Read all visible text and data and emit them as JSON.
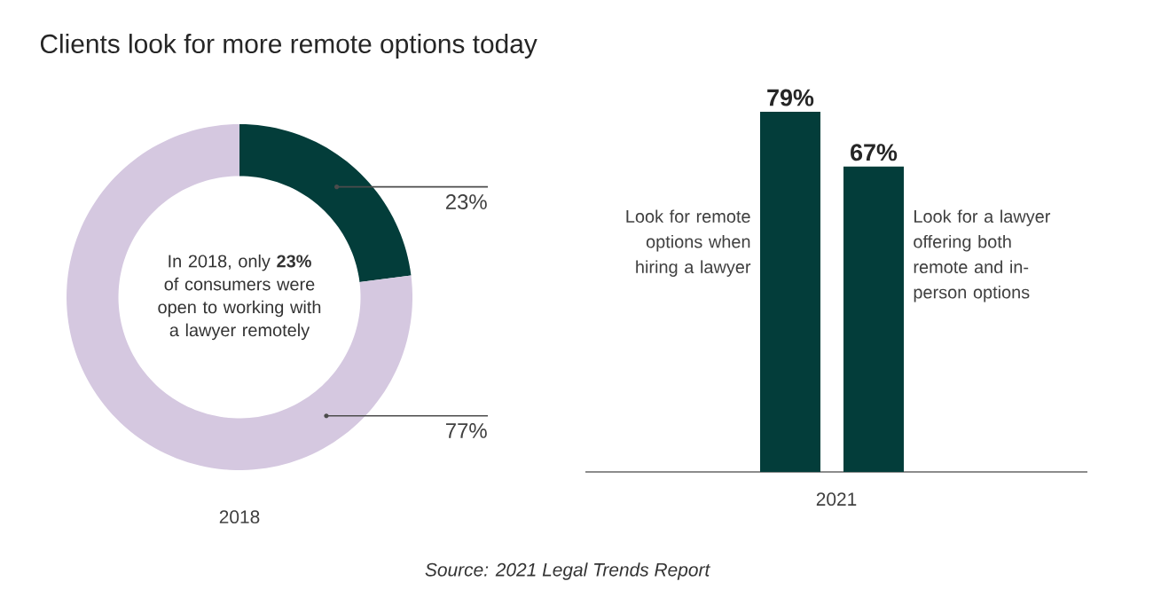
{
  "chart_data": [
    {
      "type": "donut",
      "title": "Clients look for more remote options today",
      "xlabel": "2018",
      "categories": [
        null,
        null
      ],
      "values": [
        23,
        77
      ],
      "colors": [
        "#033d3a",
        "#d5c8e0"
      ],
      "value_labels": [
        "23%",
        "77%"
      ],
      "annotations": [
        "In 2018, only **23%** of consumers were open to working with a lawyer remotely"
      ]
    },
    {
      "type": "bar",
      "xlabel": "2021",
      "categories": [
        null,
        null
      ],
      "values": [
        79,
        67
      ],
      "color": "#033d3a",
      "value_labels": [
        "79%",
        "67%"
      ],
      "annotations": [
        "Look for remote options when hiring a lawyer",
        "Look for a lawyer offering both remote and in-person options",
        "Source: 2021 Legal Trends Report"
      ]
    }
  ]
}
